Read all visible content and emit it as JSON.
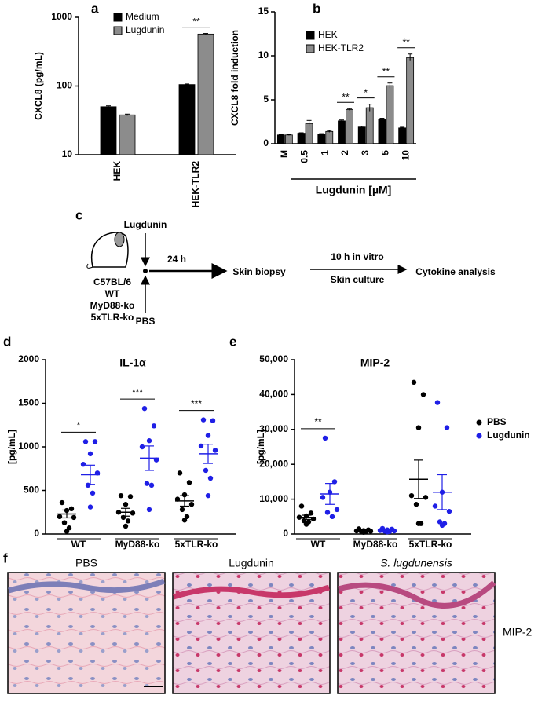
{
  "chart_data": [
    {
      "type": "bar",
      "panel_label": "a",
      "y_label": "CXCL8 (pg/mL)",
      "log_scale": true,
      "categories": [
        "HEK",
        "HEK-TLR2"
      ],
      "series": [
        {
          "name": "Medium",
          "color": "#000000",
          "values": [
            50,
            105
          ],
          "errors": [
            1.5,
            2
          ]
        },
        {
          "name": "Lugdunin",
          "color": "#8c8c8c",
          "values": [
            38,
            570
          ],
          "errors": [
            1,
            12
          ]
        }
      ],
      "significance": [
        null,
        "**"
      ],
      "ylim": [
        10,
        1000
      ],
      "yticks": [
        10,
        100,
        1000
      ],
      "grid": false,
      "legend": "top-left"
    },
    {
      "type": "bar",
      "panel_label": "b",
      "y_label": "CXCL8 fold induction",
      "x_label": "Lugdunin [µM]",
      "log_scale": false,
      "categories": [
        "M",
        "0.5",
        "1",
        "2",
        "3",
        "5",
        "10"
      ],
      "series": [
        {
          "name": "HEK",
          "color": "#000000",
          "values": [
            1.0,
            1.2,
            1.1,
            2.6,
            1.9,
            2.8,
            1.8
          ],
          "errors": [
            0.05,
            0.05,
            0.05,
            0.1,
            0.1,
            0.1,
            0.08
          ]
        },
        {
          "name": "HEK-TLR2",
          "color": "#8c8c8c",
          "values": [
            1.0,
            2.3,
            1.4,
            3.9,
            4.1,
            6.6,
            9.8
          ],
          "errors": [
            0.05,
            0.35,
            0.1,
            0.1,
            0.4,
            0.3,
            0.4
          ]
        }
      ],
      "significance": [
        null,
        null,
        null,
        "**",
        "*",
        "**",
        "**"
      ],
      "ylim": [
        0,
        15
      ],
      "yticks": [
        0,
        5,
        10,
        15
      ],
      "grid": false,
      "legend": "top-left"
    },
    {
      "type": "strip",
      "panel_label": "d",
      "title": "IL-1α",
      "y_label": "[pg/mL]",
      "categories": [
        "WT",
        "MyD88-ko",
        "5xTLR-ko"
      ],
      "series": [
        {
          "name": "PBS",
          "color": "#000000",
          "values": [
            [
              360,
              290,
              270,
              200,
              190,
              130,
              70,
              30
            ],
            [
              440,
              430,
              340,
              250,
              240,
              190,
              150,
              90
            ],
            [
              700,
              590,
              450,
              400,
              340,
              280,
              200,
              160
            ]
          ],
          "mean": [
            230,
            250,
            380
          ],
          "sem": [
            45,
            45,
            60
          ]
        },
        {
          "name": "Lugdunin",
          "color": "#1f1fe6",
          "values": [
            [
              1060,
              1060,
              920,
              800,
              700,
              560,
              470,
              310
            ],
            [
              1440,
              1240,
              1070,
              1000,
              850,
              580,
              560,
              280
            ],
            [
              1310,
              1300,
              1130,
              1010,
              960,
              730,
              640,
              440
            ]
          ],
          "mean": [
            680,
            870,
            920
          ],
          "sem": [
            110,
            140,
            110
          ]
        }
      ],
      "significance": [
        "*",
        "***",
        "***"
      ],
      "ylim": [
        0,
        2000
      ],
      "yticks": [
        0,
        500,
        1000,
        1500,
        2000
      ],
      "grid": false
    },
    {
      "type": "strip",
      "panel_label": "e",
      "title": "MIP-2",
      "y_label": "[pg/mL]",
      "categories": [
        "WT",
        "MyD88-ko",
        "5xTLR-ko"
      ],
      "series": [
        {
          "name": "PBS",
          "color": "#000000",
          "values": [
            [
              8000,
              6000,
              5200,
              4800,
              4300,
              3800,
              3500,
              2800
            ],
            [
              1500,
              1200,
              1000,
              900,
              800,
              700,
              600,
              500
            ],
            [
              43500,
              40000,
              30500,
              11000,
              10500,
              8500,
              3000,
              3000
            ]
          ],
          "mean": [
            4800,
            900,
            15700
          ],
          "sem": [
            600,
            150,
            5500
          ]
        },
        {
          "name": "Lugdunin",
          "color": "#1f1fe6",
          "values": [
            [
              27500,
              15000,
              12000,
              10500,
              7000,
              6200,
              5000
            ],
            [
              1600,
              1400,
              1200,
              1000,
              900,
              800,
              700,
              600
            ],
            [
              37700,
              30500,
              12000,
              8000,
              6500,
              3500,
              3000,
              2500
            ]
          ],
          "mean": [
            11500,
            1000,
            12000
          ],
          "sem": [
            3000,
            130,
            5000
          ]
        }
      ],
      "significance": [
        "**",
        null,
        null
      ],
      "ylim": [
        0,
        50000
      ],
      "yticks": [
        0,
        {
          "value": 10000,
          "label": "10,000"
        },
        {
          "value": 20000,
          "label": "20,000"
        },
        {
          "value": 30000,
          "label": "30,000"
        },
        {
          "value": 40000,
          "label": "40,000"
        },
        {
          "value": 50000,
          "label": "50,000"
        }
      ],
      "grid": false,
      "legend": "right"
    }
  ],
  "diagram": {
    "panel_label": "c",
    "treatment_top": "Lugdunin",
    "treatment_bottom": "PBS",
    "mice": [
      "C57BL/6",
      "WT",
      "MyD88-ko",
      "5xTLR-ko"
    ],
    "time": "24 h",
    "step_1": "Skin biopsy",
    "culture_top": "10 h in vitro",
    "culture_bottom": "Skin culture",
    "step_2": "Cytokine analysis"
  },
  "histology": {
    "panel_label": "f",
    "columns": [
      "PBS",
      "Lugdunin",
      "S. lugdunensis"
    ],
    "row_label": "MIP-2"
  }
}
